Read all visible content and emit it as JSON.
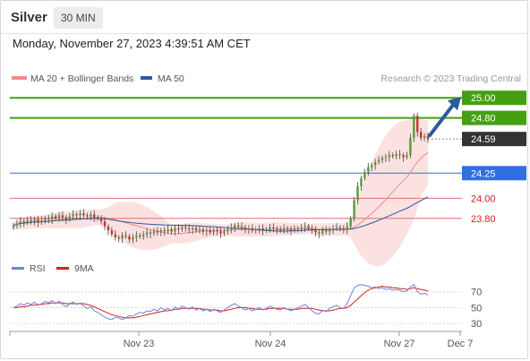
{
  "header": {
    "instrument": "Silver",
    "timeframe": "30 MIN"
  },
  "datetime": "Monday, November 27, 2023 4:39:51 AM CET",
  "legend": {
    "ma20": {
      "label": "MA 20 + Bollinger Bands",
      "color": "#f08a8a"
    },
    "ma50": {
      "label": "MA 50",
      "color": "#2c5a9c"
    },
    "credit": "Research © 2023 Trading Central"
  },
  "colors": {
    "resistance": "#44a012",
    "support": "#2f6fe0",
    "pivot": "#e07070",
    "current": "#333333",
    "arrow": "#2c5a9c",
    "candle_up": "#5a9a3a",
    "candle_down": "#c0392b",
    "rsi": "#6b86d8",
    "rsi_ma": "#d42020"
  },
  "chart_data": [
    {
      "type": "candlestick",
      "ylim": [
        23.45,
        25.1
      ],
      "x_ticks": [
        "Nov 23",
        "Nov 24",
        "Nov 27",
        "Dec 7"
      ],
      "levels": [
        {
          "value": 25.0,
          "label": "25.00",
          "kind": "resistance"
        },
        {
          "value": 24.8,
          "label": "24.80",
          "kind": "resistance"
        },
        {
          "value": 24.59,
          "label": "24.59",
          "kind": "current"
        },
        {
          "value": 24.25,
          "label": "24.25",
          "kind": "support"
        },
        {
          "value": 24.0,
          "label": "24.00",
          "kind": "pivot"
        },
        {
          "value": 23.8,
          "label": "23.80",
          "kind": "pivot"
        }
      ],
      "closes": [
        23.73,
        23.75,
        23.77,
        23.76,
        23.78,
        23.77,
        23.79,
        23.76,
        23.78,
        23.8,
        23.79,
        23.82,
        23.8,
        23.83,
        23.81,
        23.79,
        23.82,
        23.84,
        23.83,
        23.85,
        23.83,
        23.82,
        23.84,
        23.81,
        23.8,
        23.77,
        23.72,
        23.68,
        23.64,
        23.61,
        23.6,
        23.63,
        23.62,
        23.59,
        23.61,
        23.63,
        23.62,
        23.64,
        23.66,
        23.65,
        23.67,
        23.66,
        23.68,
        23.67,
        23.69,
        23.67,
        23.7,
        23.69,
        23.71,
        23.7,
        23.69,
        23.7,
        23.68,
        23.69,
        23.67,
        23.68,
        23.66,
        23.68,
        23.67,
        23.65,
        23.67,
        23.69,
        23.71,
        23.73,
        23.72,
        23.71,
        23.69,
        23.7,
        23.68,
        23.69,
        23.7,
        23.68,
        23.69,
        23.71,
        23.7,
        23.69,
        23.68,
        23.7,
        23.69,
        23.68,
        23.69,
        23.7,
        23.71,
        23.72,
        23.7,
        23.68,
        23.66,
        23.65,
        23.68,
        23.67,
        23.69,
        23.7,
        23.71,
        23.7,
        23.69,
        23.72,
        23.8,
        23.98,
        24.12,
        24.2,
        24.26,
        24.31,
        24.33,
        24.36,
        24.38,
        24.4,
        24.41,
        24.43,
        24.42,
        24.44,
        24.43,
        24.41,
        24.43,
        24.6,
        24.82,
        24.66,
        24.6,
        24.62,
        24.59
      ]
    },
    {
      "type": "line",
      "title": "RSI",
      "ylim": [
        20,
        90
      ],
      "y_ticks": [
        70,
        50,
        30
      ],
      "series": [
        {
          "name": "RSI",
          "values": [
            50,
            52,
            55,
            53,
            56,
            54,
            57,
            53,
            55,
            58,
            56,
            59,
            55,
            58,
            54,
            51,
            55,
            57,
            54,
            56,
            52,
            49,
            51,
            46,
            44,
            41,
            38,
            36,
            35,
            38,
            37,
            35,
            37,
            40,
            39,
            42,
            44,
            43,
            46,
            45,
            48,
            46,
            50,
            47,
            49,
            46,
            51,
            48,
            52,
            50,
            48,
            51,
            47,
            49,
            46,
            48,
            45,
            48,
            46,
            44,
            47,
            50,
            53,
            55,
            52,
            50,
            47,
            49,
            46,
            48,
            50,
            47,
            49,
            52,
            50,
            48,
            47,
            50,
            48,
            46,
            48,
            50,
            52,
            54,
            50,
            46,
            43,
            42,
            47,
            45,
            49,
            51,
            53,
            50,
            49,
            55,
            65,
            75,
            78,
            79,
            78,
            77,
            75,
            76,
            74,
            75,
            73,
            74,
            72,
            73,
            72,
            70,
            71,
            76,
            79,
            70,
            67,
            68,
            66
          ]
        },
        {
          "name": "9MA",
          "values": [
            50,
            50,
            51,
            51,
            52,
            53,
            53,
            54,
            54,
            55,
            55,
            56,
            56,
            56,
            56,
            55,
            55,
            55,
            55,
            55,
            55,
            54,
            53,
            51,
            49,
            47,
            45,
            43,
            41,
            40,
            39,
            38,
            37,
            37,
            37,
            38,
            39,
            40,
            41,
            42,
            43,
            44,
            45,
            46,
            46,
            47,
            48,
            48,
            49,
            49,
            49,
            49,
            49,
            49,
            48,
            48,
            47,
            47,
            47,
            46,
            46,
            47,
            48,
            49,
            50,
            50,
            50,
            49,
            49,
            48,
            48,
            48,
            48,
            49,
            49,
            49,
            49,
            49,
            48,
            48,
            48,
            48,
            49,
            49,
            49,
            49,
            48,
            47,
            46,
            46,
            46,
            47,
            48,
            49,
            49,
            50,
            53,
            57,
            61,
            65,
            69,
            72,
            74,
            75,
            76,
            77,
            76,
            76,
            75,
            75,
            74,
            74,
            73,
            74,
            75,
            74,
            73,
            72,
            71
          ]
        }
      ]
    }
  ]
}
